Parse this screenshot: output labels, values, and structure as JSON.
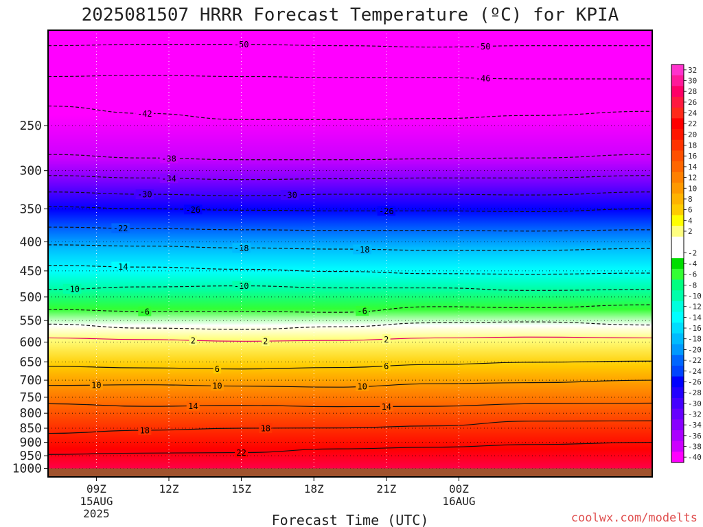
{
  "chart_data": {
    "type": "heatmap",
    "title": "2025081507 HRRR Forecast Temperature (ºC) for KPIA",
    "xlabel": "Forecast Time (UTC)",
    "ylabel": "",
    "credit": "coolwx.com/modelts",
    "x_range_hours_utc": [
      7,
      32
    ],
    "x_ticks": [
      {
        "label": "09Z",
        "sub1": "15AUG",
        "sub2": "2025",
        "value": 9
      },
      {
        "label": "12Z",
        "sub1": "",
        "sub2": "",
        "value": 12
      },
      {
        "label": "15Z",
        "sub1": "",
        "sub2": "",
        "value": 15
      },
      {
        "label": "18Z",
        "sub1": "",
        "sub2": "",
        "value": 18
      },
      {
        "label": "21Z",
        "sub1": "",
        "sub2": "",
        "value": 21
      },
      {
        "label": "00Z",
        "sub1": "16AUG",
        "sub2": "",
        "value": 24
      }
    ],
    "y_ticks": [
      {
        "label": "250",
        "value": 250
      },
      {
        "label": "300",
        "value": 300
      },
      {
        "label": "350",
        "value": 350
      },
      {
        "label": "400",
        "value": 400
      },
      {
        "label": "450",
        "value": 450
      },
      {
        "label": "500",
        "value": 500
      },
      {
        "label": "550",
        "value": 550
      },
      {
        "label": "600",
        "value": 600
      },
      {
        "label": "650",
        "value": 650
      },
      {
        "label": "700",
        "value": 700
      },
      {
        "label": "750",
        "value": 750
      },
      {
        "label": "800",
        "value": 800
      },
      {
        "label": "850",
        "value": 850
      },
      {
        "label": "900",
        "value": 900
      },
      {
        "label": "950",
        "value": 950
      },
      {
        "label": "1000",
        "value": 1000
      }
    ],
    "y_range_hpa": [
      170,
      1035
    ],
    "surface_pressure_hpa": 1000,
    "ground_color": "#a0522d",
    "legend": [
      {
        "value": 32,
        "label": "32",
        "color": "#ff33cc"
      },
      {
        "value": 30,
        "label": "30",
        "color": "#ff1a99"
      },
      {
        "value": 28,
        "label": "28",
        "color": "#ff0066"
      },
      {
        "value": 26,
        "label": "26",
        "color": "#ff1a40"
      },
      {
        "value": 24,
        "label": "24",
        "color": "#ff2a1a"
      },
      {
        "value": 22,
        "label": "22",
        "color": "#ff0000"
      },
      {
        "value": 20,
        "label": "20",
        "color": "#ff1500"
      },
      {
        "value": 18,
        "label": "18",
        "color": "#ff3300"
      },
      {
        "value": 16,
        "label": "16",
        "color": "#ff5000"
      },
      {
        "value": 14,
        "label": "14",
        "color": "#ff6600"
      },
      {
        "value": 12,
        "label": "12",
        "color": "#ff8000"
      },
      {
        "value": 10,
        "label": "10",
        "color": "#ff9900"
      },
      {
        "value": 8,
        "label": "8",
        "color": "#ffb300"
      },
      {
        "value": 6,
        "label": "6",
        "color": "#ffcc00"
      },
      {
        "value": 4,
        "label": "4",
        "color": "#ffff00"
      },
      {
        "value": 2,
        "label": "2",
        "color": "#ffff80"
      },
      {
        "value": 0,
        "label": "",
        "color": "#ffffff"
      },
      {
        "value": -2,
        "label": "-2",
        "color": "#ffffff"
      },
      {
        "value": -4,
        "label": "-4",
        "color": "#00dd00"
      },
      {
        "value": -6,
        "label": "-6",
        "color": "#33ff33"
      },
      {
        "value": -8,
        "label": "-8",
        "color": "#00ff80"
      },
      {
        "value": -10,
        "label": "-10",
        "color": "#00ffaa"
      },
      {
        "value": -12,
        "label": "-12",
        "color": "#00ffdd"
      },
      {
        "value": -14,
        "label": "-14",
        "color": "#00ffff"
      },
      {
        "value": -16,
        "label": "-16",
        "color": "#00ddff"
      },
      {
        "value": -18,
        "label": "-18",
        "color": "#00bbff"
      },
      {
        "value": -20,
        "label": "-20",
        "color": "#0099ff"
      },
      {
        "value": -22,
        "label": "-22",
        "color": "#0066ff"
      },
      {
        "value": -24,
        "label": "-24",
        "color": "#0044ff"
      },
      {
        "value": -26,
        "label": "-26",
        "color": "#0000ff"
      },
      {
        "value": -28,
        "label": "-28",
        "color": "#2200ff"
      },
      {
        "value": -30,
        "label": "-30",
        "color": "#4400ff"
      },
      {
        "value": -32,
        "label": "-32",
        "color": "#6600ff"
      },
      {
        "value": -34,
        "label": "-34",
        "color": "#8800ff"
      },
      {
        "value": -36,
        "label": "-36",
        "color": "#aa00ff"
      },
      {
        "value": -38,
        "label": "-38",
        "color": "#cc00ff"
      },
      {
        "value": -40,
        "label": "-40",
        "color": "#ff00ff"
      }
    ],
    "contours": [
      {
        "value": -50,
        "label": "-50",
        "p": [
          181,
          180,
          180,
          181,
          182,
          181,
          181
        ],
        "labels_at": [
          15,
          25
        ]
      },
      {
        "value": -46,
        "label": "-46",
        "p": [
          205,
          204,
          205,
          206,
          206,
          207,
          207
        ],
        "labels_at": [
          25
        ]
      },
      {
        "value": -42,
        "label": "-42",
        "p": [
          231,
          238,
          244,
          244,
          243,
          240,
          236
        ],
        "labels_at": [
          11
        ]
      },
      {
        "value": -38,
        "label": "-38",
        "p": [
          281,
          285,
          287,
          287,
          286,
          285,
          281
        ],
        "labels_at": [
          12
        ]
      },
      {
        "value": -34,
        "label": "-34",
        "p": [
          306,
          309,
          311,
          310,
          309,
          309,
          306
        ],
        "labels_at": [
          12
        ]
      },
      {
        "value": -30,
        "label": "-30",
        "p": [
          327,
          330,
          332,
          330,
          330,
          331,
          327
        ],
        "labels_at": [
          11,
          17
        ]
      },
      {
        "value": -26,
        "label": "-26",
        "p": [
          347,
          350,
          352,
          353,
          353,
          354,
          350
        ],
        "labels_at": [
          13,
          21
        ]
      },
      {
        "value": -22,
        "label": "-22",
        "p": [
          377,
          379,
          381,
          382,
          382,
          383,
          381
        ],
        "labels_at": [
          10
        ]
      },
      {
        "value": -18,
        "label": "-18",
        "p": [
          405,
          407,
          410,
          412,
          414,
          414,
          411
        ],
        "labels_at": [
          15,
          20
        ]
      },
      {
        "value": -14,
        "label": "-14",
        "p": [
          440,
          443,
          447,
          451,
          455,
          456,
          454
        ],
        "labels_at": [
          10
        ]
      },
      {
        "value": -10,
        "label": "-10",
        "p": [
          485,
          480,
          478,
          482,
          482,
          487,
          485
        ],
        "labels_at": [
          8,
          15
        ]
      },
      {
        "value": -6,
        "label": "-6",
        "p": [
          526,
          530,
          530,
          532,
          520,
          522,
          516
        ],
        "labels_at": [
          11,
          20
        ]
      },
      {
        "value": -2,
        "label": "",
        "p": [
          558,
          567,
          570,
          564,
          555,
          553,
          560
        ],
        "labels_at": []
      },
      {
        "value": 2,
        "label": "2",
        "p": [
          590,
          594,
          598,
          596,
          590,
          588,
          590
        ],
        "labels_at": [
          13,
          16,
          21
        ]
      },
      {
        "value": 6,
        "label": "6",
        "p": [
          662,
          666,
          669,
          665,
          657,
          651,
          648
        ],
        "labels_at": [
          14,
          21
        ]
      },
      {
        "value": 10,
        "label": "10",
        "p": [
          715,
          713,
          717,
          720,
          710,
          707,
          700
        ],
        "labels_at": [
          9,
          14,
          20
        ]
      },
      {
        "value": 14,
        "label": "14",
        "p": [
          770,
          778,
          775,
          779,
          778,
          770,
          768
        ],
        "labels_at": [
          13,
          21
        ]
      },
      {
        "value": 18,
        "label": "18",
        "p": [
          868,
          857,
          850,
          849,
          842,
          826,
          825
        ],
        "labels_at": [
          11,
          16
        ]
      },
      {
        "value": 22,
        "label": "22",
        "p": [
          945,
          940,
          938,
          924,
          918,
          908,
          900
        ],
        "labels_at": [
          15
        ]
      }
    ],
    "contour_times": [
      7,
      11,
      15,
      19,
      23,
      27,
      32
    ]
  }
}
